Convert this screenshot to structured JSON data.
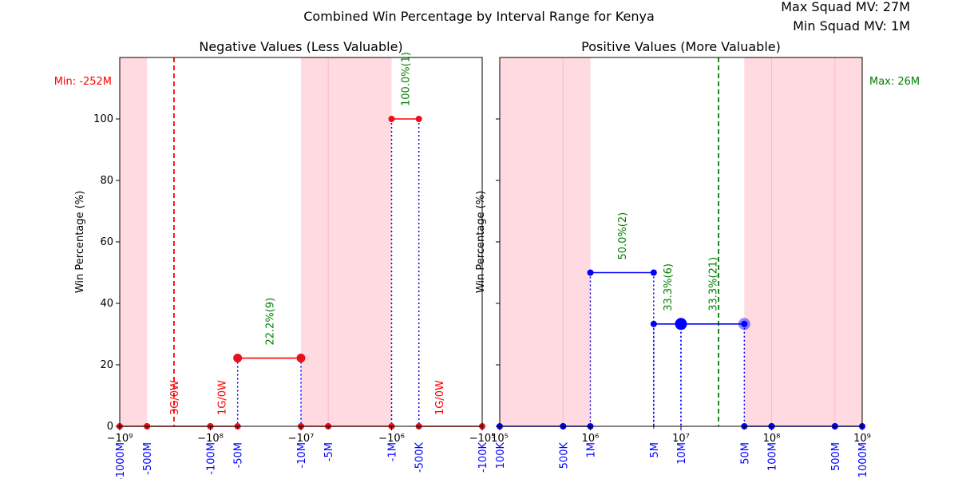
{
  "figure": {
    "title": "Combined Win Percentage by Interval Range for Kenya",
    "max_label": "Max Squad MV: 27M",
    "min_label": "Min Squad MV: 1M"
  },
  "colors": {
    "shade": "#ffb6c1",
    "neg_line": "#ff0000",
    "neg_point": "#e8101a",
    "pos_line": "#0000ff",
    "dotted": "#0000ff",
    "annotation_green": "#008000",
    "annotation_red": "#ff0000",
    "tick_blue": "#0000ff"
  },
  "chart_data": [
    {
      "type": "line",
      "title": "Negative Values (Less Valuable)",
      "ylabel": "Win Percentage (%)",
      "xscale": "symlog-negative",
      "xlim": [
        -1000000000,
        -100000
      ],
      "ylim": [
        0,
        120
      ],
      "yticks": [
        0,
        20,
        40,
        60,
        80,
        100
      ],
      "xticks_major": [
        {
          "value": -1000000000,
          "label": "−10⁹"
        },
        {
          "value": -100000000,
          "label": "−10⁸"
        },
        {
          "value": -10000000,
          "label": "−10⁷"
        },
        {
          "value": -1000000,
          "label": "−10⁶"
        },
        {
          "value": -100000,
          "label": "−10⁵"
        }
      ],
      "xticks_interval": [
        {
          "value": -1000000000,
          "label": "-1000M"
        },
        {
          "value": -500000000,
          "label": "-500M"
        },
        {
          "value": -100000000,
          "label": "-100M"
        },
        {
          "value": -50000000,
          "label": "-50M"
        },
        {
          "value": -10000000,
          "label": "-10M"
        },
        {
          "value": -5000000,
          "label": "-5M"
        },
        {
          "value": -1000000,
          "label": "-1M"
        },
        {
          "value": -500000,
          "label": "-500K"
        },
        {
          "value": -100000,
          "label": "-100K"
        }
      ],
      "shaded_ranges": [
        [
          -1000000000,
          -500000000
        ],
        [
          -10000000,
          -1000000
        ]
      ],
      "reference_line": {
        "value": -252000000,
        "label": "Min: -252M"
      },
      "segments": [
        {
          "from": -1000000000,
          "to": -500000000,
          "win_pct": 0
        },
        {
          "from": -500000000,
          "to": -100000000,
          "win_pct": 0
        },
        {
          "from": -100000000,
          "to": -50000000,
          "win_pct": 0
        },
        {
          "from": -50000000,
          "to": -10000000,
          "win_pct": 22.2,
          "games": 9,
          "label": "22.2%(9)"
        },
        {
          "from": -10000000,
          "to": -5000000,
          "win_pct": 0
        },
        {
          "from": -5000000,
          "to": -1000000,
          "win_pct": 0
        },
        {
          "from": -1000000,
          "to": -500000,
          "win_pct": 100.0,
          "games": 1,
          "label": "100.0%(1)"
        },
        {
          "from": -500000,
          "to": -100000,
          "win_pct": 0
        }
      ],
      "highlight_points": [
        {
          "x": -50000000,
          "y": 22.2
        },
        {
          "x": -10000000,
          "y": 22.2
        }
      ],
      "zero_annotations": [
        {
          "x": -252000000,
          "label": "3G/0W"
        },
        {
          "x": -75000000,
          "label": "1G/0W"
        },
        {
          "x": -300000,
          "label": "1G/0W"
        }
      ]
    },
    {
      "type": "line",
      "title": "Positive Values (More Valuable)",
      "ylabel": "Win Percentage (%)",
      "xscale": "log",
      "xlim": [
        100000,
        1000000000
      ],
      "ylim": [
        0,
        120
      ],
      "yticks": [
        0,
        20,
        40,
        60,
        80,
        100
      ],
      "xticks_major": [
        {
          "value": 100000,
          "label": "10⁵"
        },
        {
          "value": 1000000,
          "label": "10⁶"
        },
        {
          "value": 10000000,
          "label": "10⁷"
        },
        {
          "value": 100000000,
          "label": "10⁸"
        },
        {
          "value": 1000000000,
          "label": "10⁹"
        }
      ],
      "xticks_interval": [
        {
          "value": 100000,
          "label": "100K"
        },
        {
          "value": 500000,
          "label": "500K"
        },
        {
          "value": 1000000,
          "label": "1M"
        },
        {
          "value": 5000000,
          "label": "5M"
        },
        {
          "value": 10000000,
          "label": "10M"
        },
        {
          "value": 50000000,
          "label": "50M"
        },
        {
          "value": 100000000,
          "label": "100M"
        },
        {
          "value": 500000000,
          "label": "500M"
        },
        {
          "value": 1000000000,
          "label": "1000M"
        }
      ],
      "shaded_ranges": [
        [
          100000,
          1000000
        ],
        [
          50000000,
          1000000000
        ]
      ],
      "reference_line": {
        "value": 26000000,
        "label": "Max: 26M"
      },
      "segments": [
        {
          "from": 100000,
          "to": 500000,
          "win_pct": 0
        },
        {
          "from": 500000,
          "to": 1000000,
          "win_pct": 0
        },
        {
          "from": 1000000,
          "to": 5000000,
          "win_pct": 50.0,
          "games": 2,
          "label": "50.0%(2)"
        },
        {
          "from": 5000000,
          "to": 10000000,
          "win_pct": 33.3,
          "games": 6,
          "label": "33.3%(6)"
        },
        {
          "from": 10000000,
          "to": 50000000,
          "win_pct": 33.3,
          "games": 21,
          "label": "33.3%(21)"
        },
        {
          "from": 50000000,
          "to": 100000000,
          "win_pct": 0
        },
        {
          "from": 100000000,
          "to": 500000000,
          "win_pct": 0
        },
        {
          "from": 500000000,
          "to": 1000000000,
          "win_pct": 0
        }
      ],
      "highlight_points": [
        {
          "x": 10000000,
          "y": 33.3
        }
      ],
      "faded_points": [
        {
          "x": 50000000,
          "y": 33.3
        }
      ],
      "zero_annotations": []
    }
  ]
}
